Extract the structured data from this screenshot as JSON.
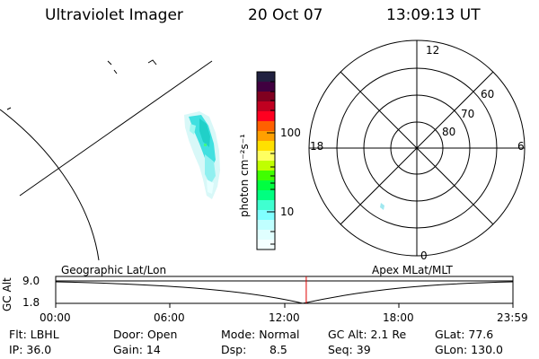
{
  "header": {
    "instrument": "Ultraviolet Imager",
    "date": "20 Oct 07",
    "time": "13:09:13 UT"
  },
  "colorbar": {
    "unit_label": "photon cm⁻²s⁻¹",
    "ticks": [
      "100",
      "10"
    ],
    "colors": [
      "#202040",
      "#400040",
      "#800020",
      "#c00020",
      "#ff0020",
      "#ff6000",
      "#ffa000",
      "#ffe000",
      "#ffff60",
      "#c0ff00",
      "#40ff00",
      "#00ff40",
      "#00ff80",
      "#40ffd0",
      "#80ffff",
      "#c0ffff",
      "#e0ffff",
      "#f4ffff"
    ]
  },
  "polar_plot": {
    "mlt_labels": [
      "12",
      "18",
      "6",
      "0"
    ],
    "lat_labels": [
      "60",
      "70",
      "80"
    ]
  },
  "timeline": {
    "y_axis_label": "GC Alt",
    "y_ticks": [
      "9.0",
      "1.8"
    ],
    "left_caption": "Geographic Lat/Lon",
    "right_caption": "Apex  MLat/MLT",
    "x_ticks": [
      "00:00",
      "06:00",
      "12:00",
      "18:00",
      "23:59"
    ],
    "current_marker_hours": 13.15,
    "marker_color": "#e00000"
  },
  "metadata": {
    "flt": "Flt: LBHL",
    "door": "Door: Open",
    "mode": "Mode: Normal",
    "gc_alt": "GC Alt: 2.1 Re",
    "glat": "GLat:  77.6",
    "ip": "IP: 36.0",
    "gain": "Gain: 14",
    "dsp_label": "Dsp:",
    "dsp_value": "8.5",
    "seq": "Seq: 39",
    "glon": "GLon: 130.0"
  }
}
